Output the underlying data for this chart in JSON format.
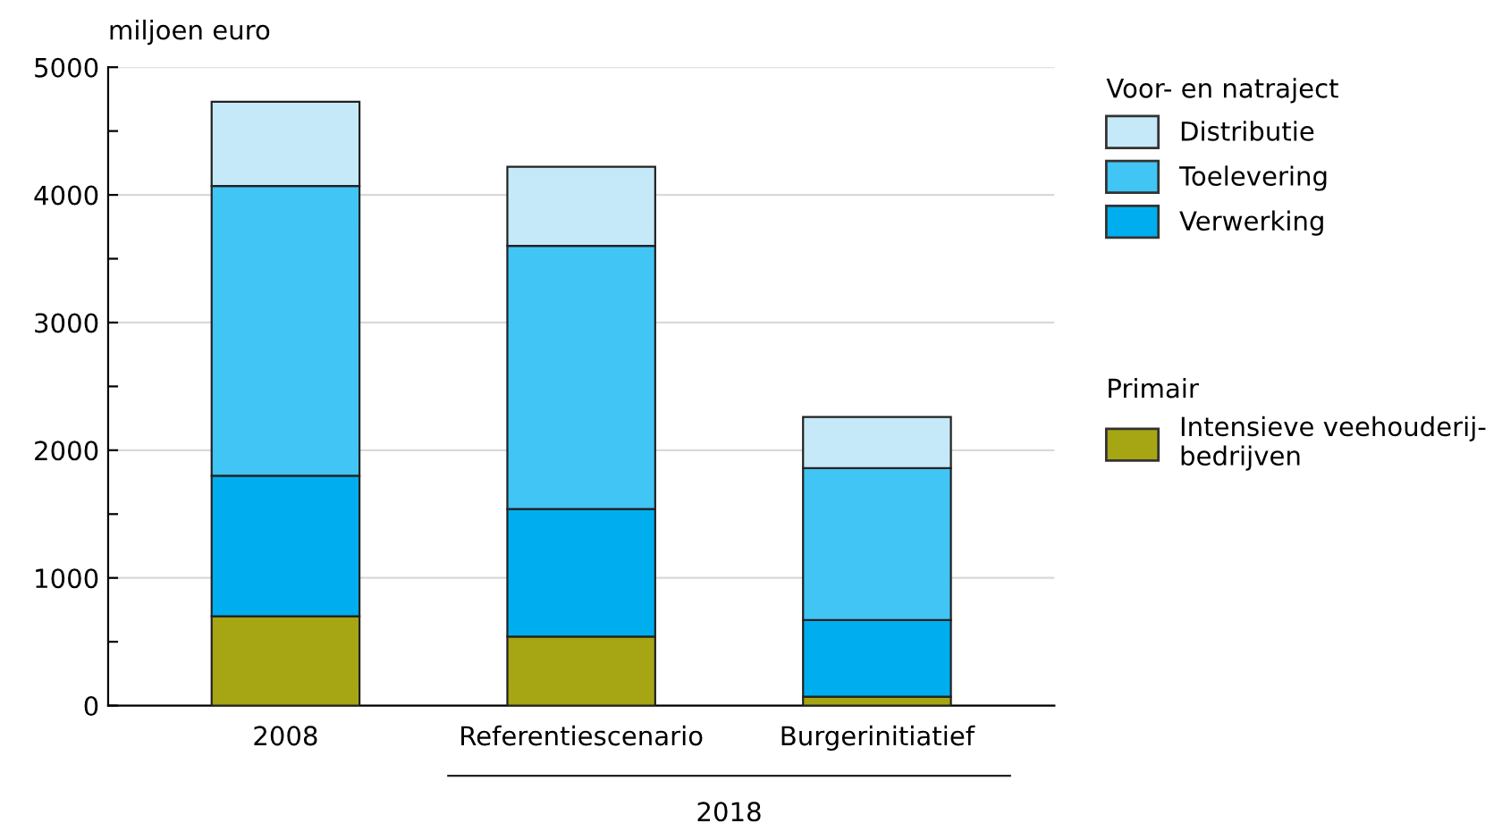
{
  "chart_data": {
    "type": "bar",
    "stacked": true,
    "ylabel": "miljoen euro",
    "categories": [
      "2008",
      "Referentiescenario",
      "Burgerinitiatief"
    ],
    "series": [
      {
        "name": "Intensieve veehouderij-\nbedrijven",
        "color": "#a6a514",
        "values": [
          700,
          540,
          70
        ]
      },
      {
        "name": "Verwerking",
        "color": "#00aeef",
        "values": [
          1100,
          1000,
          600
        ]
      },
      {
        "name": "Toelevering",
        "color": "#40c5f4",
        "values": [
          2270,
          2060,
          1190
        ]
      },
      {
        "name": "Distributie",
        "color": "#c6e9f9",
        "values": [
          660,
          620,
          400
        ]
      }
    ],
    "legend_title": "Voor- en natraject",
    "annotations": [
      "2018",
      "Primair"
    ],
    "ylim": [
      0,
      5000
    ],
    "yticks": [
      0,
      {
        "value": 500,
        "label": null
      },
      1000,
      {
        "value": 1500,
        "label": null
      },
      2000,
      {
        "value": 2500,
        "label": null
      },
      3000,
      {
        "value": 3500,
        "label": null
      },
      4000,
      {
        "value": 4500,
        "label": null
      },
      5000
    ],
    "grid": "y",
    "legend": "right"
  }
}
